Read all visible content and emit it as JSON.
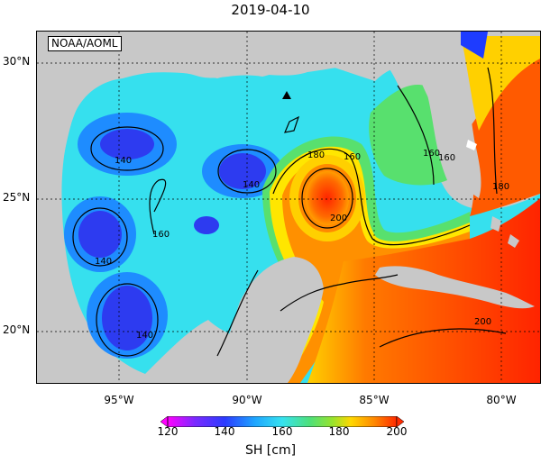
{
  "title": "2019-04-10",
  "credit": "NOAA/AOML",
  "lat_labels": [
    "30°N",
    "25°N",
    "20°N"
  ],
  "lon_labels": [
    "95°W",
    "90°W",
    "85°W",
    "80°W"
  ],
  "contour_labels": [
    "140",
    "140",
    "140",
    "140",
    "160",
    "160",
    "160",
    "180",
    "180",
    "200",
    "160",
    "200"
  ],
  "colorbar": {
    "ticks": [
      "120",
      "140",
      "160",
      "180",
      "200"
    ],
    "label": "SH [cm]",
    "colors": [
      "#ff00ff",
      "#6a2aff",
      "#2b3bff",
      "#1ea5ff",
      "#36e2f0",
      "#4de07a",
      "#98e32c",
      "#ffd700",
      "#ff8a00",
      "#ff2a00"
    ]
  },
  "marker": "station-triangle"
}
